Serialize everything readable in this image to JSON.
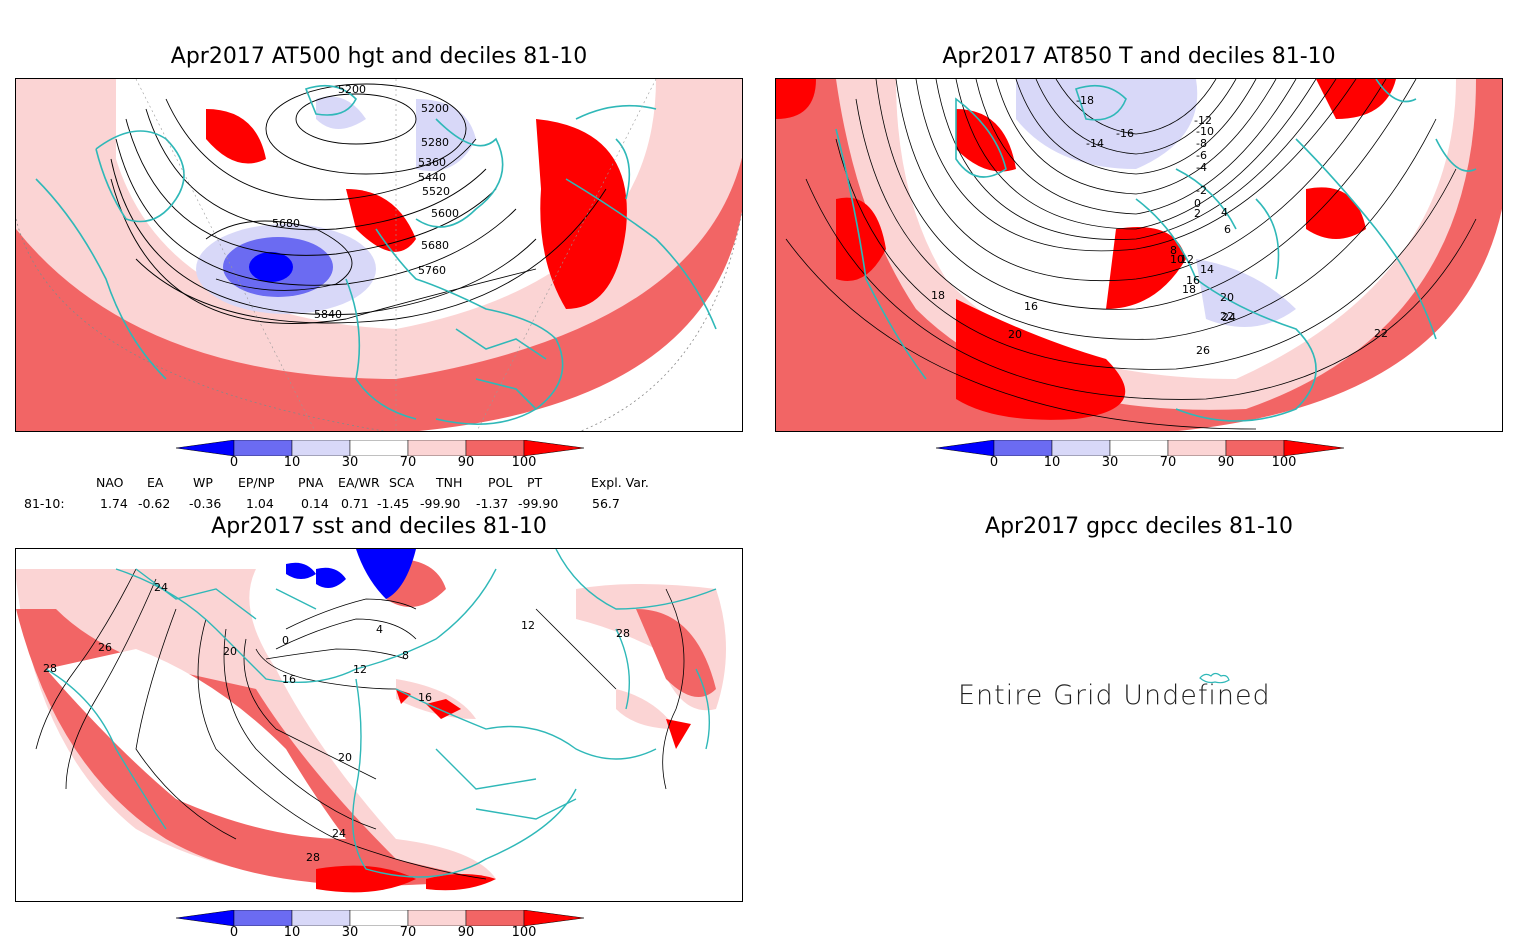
{
  "panels": {
    "p1": {
      "title": "Apr2017 AT500 hgt and deciles 81-10",
      "contour_labels": [
        "5200",
        "5200",
        "5280",
        "5360",
        "5440",
        "5520",
        "5600",
        "5680",
        "5680",
        "5760",
        "5840"
      ]
    },
    "p2": {
      "title": "Apr2017 AT850 T and deciles 81-10",
      "contour_labels": [
        "-18",
        "-16",
        "-14",
        "-12",
        "-10",
        "-8",
        "-6",
        "-4",
        "-2",
        "0",
        "2",
        "4",
        "6",
        "8",
        "10",
        "12",
        "14",
        "16",
        "18",
        "20",
        "22",
        "24",
        "26",
        "18",
        "20",
        "16",
        "22"
      ]
    },
    "p3": {
      "title": "Apr2017 sst and deciles 81-10",
      "contour_labels": [
        "24",
        "26",
        "28",
        "20",
        "16",
        "12",
        "8",
        "4",
        "0",
        "20",
        "24",
        "28",
        "28",
        "12",
        "16"
      ]
    },
    "p4": {
      "title": "Apr2017 gpcc deciles 81-10",
      "message": "Entire Grid Undefined"
    }
  },
  "colorbar": {
    "ticks": [
      "0",
      "10",
      "30",
      "70",
      "90",
      "100"
    ],
    "colors": [
      "#0000ff",
      "#6b6bf2",
      "#d8d8f8",
      "#ffffff",
      "#fbd4d4",
      "#f26565",
      "#ff0000"
    ]
  },
  "indices": {
    "headers": [
      "NAO",
      "EA",
      "WP",
      "EP/NP",
      "PNA",
      "EA/WR",
      "SCA",
      "TNH",
      "POL",
      "PT",
      "Expl. Var."
    ],
    "row_label": "81-10:",
    "values": [
      "1.74",
      "-0.62",
      "-0.36",
      "1.04",
      "0.14",
      "0.71",
      "-1.45",
      "-99.90",
      "-1.37",
      "-99.90",
      "56.7"
    ]
  },
  "colors": {
    "coast": "#2fb8b8",
    "red_strong": "#ff0000",
    "red_mid": "#f26565",
    "red_light": "#fbd4d4",
    "blue_strong": "#0000ff",
    "blue_mid": "#6b6bf2",
    "blue_light": "#d8d8f8"
  }
}
